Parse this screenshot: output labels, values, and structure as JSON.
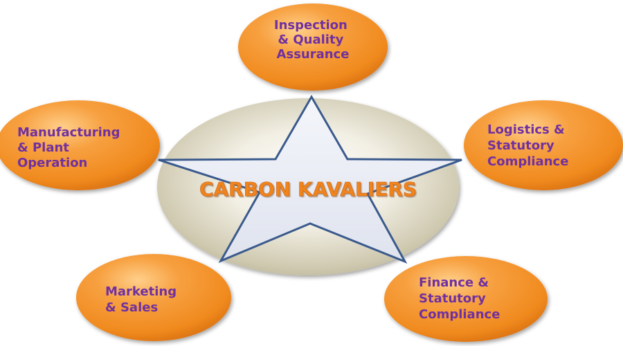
{
  "center": {
    "label": "CARBON KAVALIERS"
  },
  "nodes": [
    {
      "id": "inspection",
      "lines": [
        "Inspection",
        "& Quality",
        "Assurance"
      ]
    },
    {
      "id": "manufacturing",
      "lines": [
        "Manufacturing",
        "& Plant",
        "Operation"
      ]
    },
    {
      "id": "logistics",
      "lines": [
        "Logistics &",
        "Statutory",
        "Compliance"
      ]
    },
    {
      "id": "marketing",
      "lines": [
        "Marketing",
        "& Sales"
      ]
    },
    {
      "id": "finance",
      "lines": [
        "Finance &",
        "Statutory",
        "Compliance"
      ]
    }
  ],
  "colors": {
    "node_fill": "#f28a22",
    "node_text": "#7030a0",
    "center_text": "#f0841f",
    "star_stroke": "#3a5a8c",
    "ellipse_fill": "#ccc6ae"
  }
}
